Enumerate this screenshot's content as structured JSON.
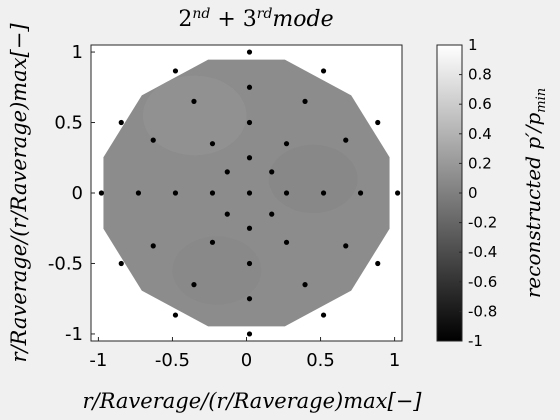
{
  "chart_data": {
    "type": "scatter",
    "title": "2nd + 3rdmode",
    "title_parts": {
      "base1": "2",
      "sup1": "nd",
      "mid": " + 3",
      "sup2": "rd",
      "tail": "mode"
    },
    "xlabel": "r/Raverage/(r/Raverage)max[−]",
    "ylabel": "r/Raverage/(r/Raverage)max[−]",
    "xlim": [
      -1.05,
      1.05
    ],
    "ylim": [
      -1.05,
      1.05
    ],
    "xticks": [
      "-1",
      "-0.5",
      "0",
      "0.5",
      "1"
    ],
    "yticks": [
      "1",
      "0.5",
      "0",
      "-0.5",
      "-1"
    ],
    "grid": false,
    "surface": {
      "shape": "dodecagon",
      "value": 0.0,
      "color": "#8c8c8c"
    },
    "points": [
      [
        0.0,
        1.0
      ],
      [
        -0.5,
        0.866
      ],
      [
        0.5,
        0.866
      ],
      [
        -0.866,
        0.5
      ],
      [
        0.866,
        0.5
      ],
      [
        -1.0,
        0.0
      ],
      [
        1.0,
        0.0
      ],
      [
        -0.866,
        -0.5
      ],
      [
        0.866,
        -0.5
      ],
      [
        -0.5,
        -0.866
      ],
      [
        0.5,
        -0.866
      ],
      [
        0.0,
        -1.0
      ],
      [
        0.0,
        0.75
      ],
      [
        -0.375,
        0.65
      ],
      [
        0.375,
        0.65
      ],
      [
        -0.65,
        0.375
      ],
      [
        0.65,
        0.375
      ],
      [
        -0.75,
        0.0
      ],
      [
        0.75,
        0.0
      ],
      [
        -0.65,
        -0.375
      ],
      [
        0.65,
        -0.375
      ],
      [
        -0.375,
        -0.65
      ],
      [
        0.375,
        -0.65
      ],
      [
        0.0,
        -0.75
      ],
      [
        0.0,
        0.5
      ],
      [
        -0.25,
        0.35
      ],
      [
        0.25,
        0.35
      ],
      [
        -0.5,
        0.0
      ],
      [
        0.5,
        0.0
      ],
      [
        -0.25,
        -0.35
      ],
      [
        0.25,
        -0.35
      ],
      [
        0.0,
        -0.5
      ],
      [
        0.0,
        0.25
      ],
      [
        -0.15,
        0.15
      ],
      [
        0.15,
        0.15
      ],
      [
        -0.25,
        0.0
      ],
      [
        0.25,
        0.0
      ],
      [
        -0.15,
        -0.15
      ],
      [
        0.15,
        -0.15
      ],
      [
        0.0,
        -0.25
      ],
      [
        0.0,
        0.0
      ]
    ],
    "colorbar": {
      "label": "reconstructed p′/pmin",
      "label_parts": {
        "a": "reconstructed p′/p",
        "sub": "min"
      },
      "range": [
        -1,
        1
      ],
      "ticks": [
        "1",
        "0.8",
        "0.6",
        "0.4",
        "0.2",
        "0",
        "-0.2",
        "-0.4",
        "-0.6",
        "-0.8",
        "-1"
      ]
    }
  }
}
